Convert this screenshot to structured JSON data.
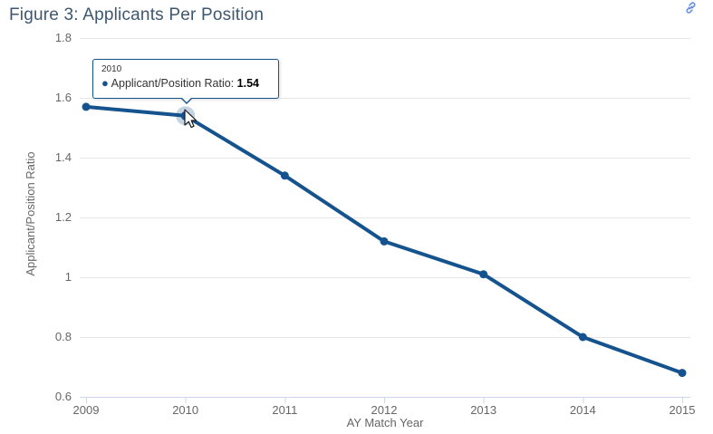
{
  "header": {
    "title": "Figure 3: Applicants Per Position",
    "link_icon": "anchor-link-icon"
  },
  "chart_data": {
    "type": "line",
    "title": "Figure 3: Applicants Per Position",
    "xlabel": "AY Match Year",
    "ylabel": "Applicant/Position Ratio",
    "x": [
      2009,
      2010,
      2011,
      2012,
      2013,
      2014,
      2015
    ],
    "series": [
      {
        "name": "Applicant/Position Ratio",
        "values": [
          1.57,
          1.54,
          1.34,
          1.12,
          1.01,
          0.8,
          0.68
        ]
      }
    ],
    "ylim": [
      0.6,
      1.8
    ],
    "yticks": [
      0.6,
      0.8,
      1,
      1.2,
      1.4,
      1.6,
      1.8
    ],
    "grid": true,
    "legend_position": "none",
    "hover_index": 1,
    "colors": {
      "series": "#15538e",
      "halo_opacity": 0.25,
      "grid": "#e6e6e6",
      "axis_line": "#ccd6eb",
      "tick_label": "#666666",
      "axis_title": "#666666",
      "title": "#3e576f",
      "link_icon": "#6b92dd"
    }
  },
  "tooltip": {
    "header": "2010",
    "marker_icon": "circle-marker-icon",
    "label": "Applicant/Position Ratio:",
    "value": "1.54"
  }
}
